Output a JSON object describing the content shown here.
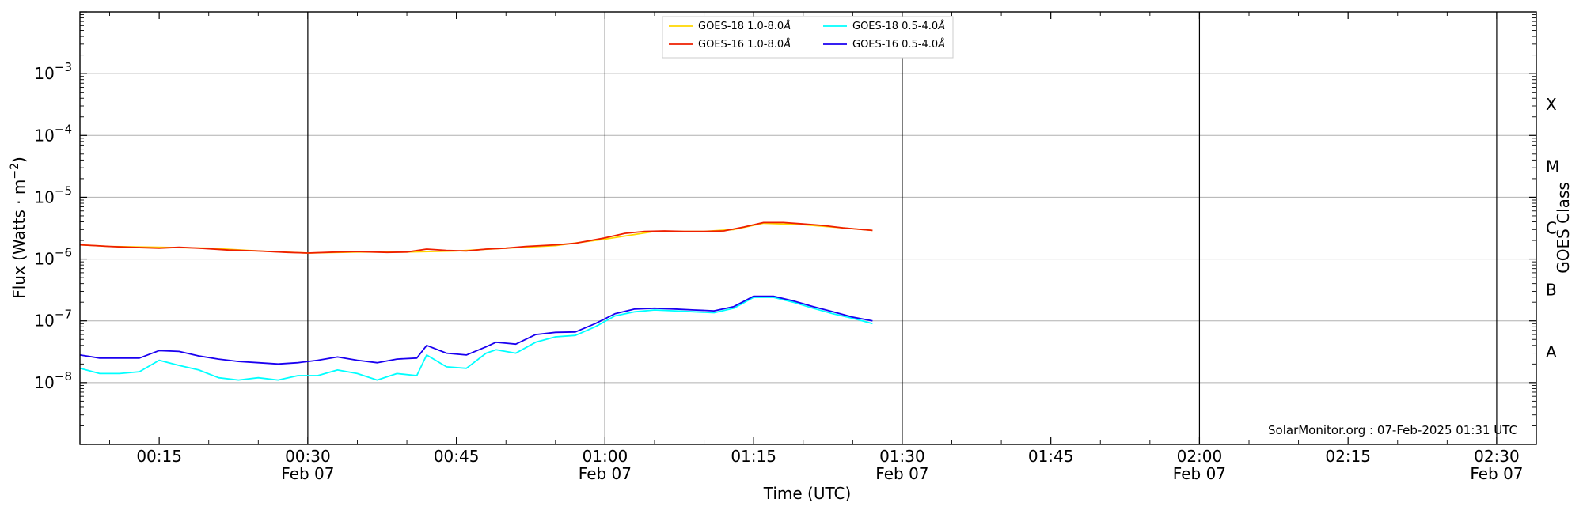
{
  "chart_data": {
    "type": "line",
    "xlabel": "Time (UTC)",
    "ylabel": "Flux (Watts · m",
    "ylabel_sup": "−2",
    "ylabel_close": ")",
    "y2label": "GOES Class",
    "yscale": "log",
    "ylim": [
      1e-09,
      0.01
    ],
    "xlim": [
      "2025-02-07T00:07",
      "2025-02-07T02:34"
    ],
    "grid": "horizontal",
    "legend_position": "top-center",
    "credit": "SolarMonitor.org : 07-Feb-2025 01:31 UTC",
    "x_ticks": [
      {
        "t": "00:15",
        "label": "00:15",
        "date": ""
      },
      {
        "t": "00:30",
        "label": "00:30",
        "date": "Feb 07"
      },
      {
        "t": "00:45",
        "label": "00:45",
        "date": ""
      },
      {
        "t": "01:00",
        "label": "01:00",
        "date": "Feb 07"
      },
      {
        "t": "01:15",
        "label": "01:15",
        "date": ""
      },
      {
        "t": "01:30",
        "label": "01:30",
        "date": "Feb 07"
      },
      {
        "t": "01:45",
        "label": "01:45",
        "date": ""
      },
      {
        "t": "02:00",
        "label": "02:00",
        "date": "Feb 07"
      },
      {
        "t": "02:15",
        "label": "02:15",
        "date": ""
      },
      {
        "t": "02:30",
        "label": "02:30",
        "date": "Feb 07"
      }
    ],
    "y_ticks": [
      {
        "exp": -8,
        "label": "10",
        "sup": "−8"
      },
      {
        "exp": -7,
        "label": "10",
        "sup": "−7"
      },
      {
        "exp": -6,
        "label": "10",
        "sup": "−6"
      },
      {
        "exp": -5,
        "label": "10",
        "sup": "−5"
      },
      {
        "exp": -4,
        "label": "10",
        "sup": "−4"
      },
      {
        "exp": -3,
        "label": "10",
        "sup": "−3"
      }
    ],
    "goes_classes": [
      {
        "label": "A",
        "exp": -7.5
      },
      {
        "label": "B",
        "exp": -6.5
      },
      {
        "label": "C",
        "exp": -5.5
      },
      {
        "label": "M",
        "exp": -4.5
      },
      {
        "label": "X",
        "exp": -3.5
      }
    ],
    "series": [
      {
        "name": "GOES-18 1.0-8.0",
        "unit": "Å",
        "color": "#ffd700",
        "x": [
          "00:07",
          "00:10",
          "00:15",
          "00:20",
          "00:25",
          "00:30",
          "00:35",
          "00:40",
          "00:45",
          "00:50",
          "00:55",
          "01:00",
          "01:05",
          "01:10",
          "01:13",
          "01:16",
          "01:20",
          "01:24",
          "01:27"
        ],
        "y": [
          1.7e-06,
          1.6e-06,
          1.55e-06,
          1.5e-06,
          1.35e-06,
          1.25e-06,
          1.3e-06,
          1.3e-06,
          1.35e-06,
          1.5e-06,
          1.65e-06,
          2.1e-06,
          2.8e-06,
          2.8e-06,
          3e-06,
          3.8e-06,
          3.6e-06,
          3.2e-06,
          2.9e-06
        ]
      },
      {
        "name": "GOES-16 1.0-8.0",
        "unit": "Å",
        "color": "#ee1f00",
        "x": [
          "00:07",
          "00:10",
          "00:12",
          "00:15",
          "00:17",
          "00:19",
          "00:22",
          "00:25",
          "00:28",
          "00:30",
          "00:33",
          "00:35",
          "00:38",
          "00:40",
          "00:42",
          "00:44",
          "00:46",
          "00:48",
          "00:50",
          "00:52",
          "00:55",
          "00:57",
          "01:00",
          "01:02",
          "01:04",
          "01:06",
          "01:08",
          "01:10",
          "01:12",
          "01:14",
          "01:16",
          "01:18",
          "01:20",
          "01:22",
          "01:24",
          "01:27"
        ],
        "y": [
          1.7e-06,
          1.6e-06,
          1.55e-06,
          1.5e-06,
          1.55e-06,
          1.5e-06,
          1.4e-06,
          1.35e-06,
          1.28e-06,
          1.25e-06,
          1.3e-06,
          1.32e-06,
          1.28e-06,
          1.3e-06,
          1.45e-06,
          1.38e-06,
          1.35e-06,
          1.45e-06,
          1.5e-06,
          1.6e-06,
          1.7e-06,
          1.8e-06,
          2.2e-06,
          2.6e-06,
          2.8e-06,
          2.85e-06,
          2.8e-06,
          2.8e-06,
          2.85e-06,
          3.3e-06,
          3.9e-06,
          3.9e-06,
          3.7e-06,
          3.5e-06,
          3.2e-06,
          2.9e-06
        ]
      },
      {
        "name": "GOES-18 0.5-4.0",
        "unit": "Å",
        "color": "#00ffff",
        "x": [
          "00:07",
          "00:09",
          "00:11",
          "00:13",
          "00:15",
          "00:17",
          "00:19",
          "00:21",
          "00:23",
          "00:25",
          "00:27",
          "00:29",
          "00:31",
          "00:33",
          "00:35",
          "00:37",
          "00:39",
          "00:41",
          "00:42",
          "00:44",
          "00:46",
          "00:48",
          "00:49",
          "00:51",
          "00:53",
          "00:55",
          "00:57",
          "00:59",
          "01:01",
          "01:03",
          "01:05",
          "01:07",
          "01:09",
          "01:11",
          "01:13",
          "01:15",
          "01:17",
          "01:19",
          "01:21",
          "01:23",
          "01:25",
          "01:27"
        ],
        "y": [
          1.7e-08,
          1.4e-08,
          1.4e-08,
          1.5e-08,
          2.3e-08,
          1.9e-08,
          1.6e-08,
          1.2e-08,
          1.1e-08,
          1.2e-08,
          1.1e-08,
          1.3e-08,
          1.3e-08,
          1.6e-08,
          1.4e-08,
          1.1e-08,
          1.4e-08,
          1.3e-08,
          2.8e-08,
          1.8e-08,
          1.7e-08,
          3e-08,
          3.4e-08,
          3e-08,
          4.5e-08,
          5.5e-08,
          5.8e-08,
          8e-08,
          1.2e-07,
          1.4e-07,
          1.5e-07,
          1.45e-07,
          1.4e-07,
          1.35e-07,
          1.6e-07,
          2.4e-07,
          2.4e-07,
          2e-07,
          1.6e-07,
          1.3e-07,
          1.1e-07,
          9e-08
        ]
      },
      {
        "name": "GOES-16 0.5-4.0",
        "unit": "Å",
        "color": "#1a00f0",
        "x": [
          "00:07",
          "00:09",
          "00:11",
          "00:13",
          "00:15",
          "00:17",
          "00:19",
          "00:21",
          "00:23",
          "00:25",
          "00:27",
          "00:29",
          "00:31",
          "00:33",
          "00:35",
          "00:37",
          "00:39",
          "00:41",
          "00:42",
          "00:44",
          "00:46",
          "00:48",
          "00:49",
          "00:51",
          "00:53",
          "00:55",
          "00:57",
          "00:59",
          "01:01",
          "01:03",
          "01:05",
          "01:07",
          "01:09",
          "01:11",
          "01:13",
          "01:15",
          "01:17",
          "01:19",
          "01:21",
          "01:23",
          "01:25",
          "01:27"
        ],
        "y": [
          2.8e-08,
          2.5e-08,
          2.5e-08,
          2.5e-08,
          3.3e-08,
          3.2e-08,
          2.7e-08,
          2.4e-08,
          2.2e-08,
          2.1e-08,
          2e-08,
          2.1e-08,
          2.3e-08,
          2.6e-08,
          2.3e-08,
          2.1e-08,
          2.4e-08,
          2.5e-08,
          4e-08,
          3e-08,
          2.8e-08,
          3.8e-08,
          4.5e-08,
          4.2e-08,
          6e-08,
          6.5e-08,
          6.6e-08,
          9e-08,
          1.3e-07,
          1.55e-07,
          1.6e-07,
          1.55e-07,
          1.5e-07,
          1.45e-07,
          1.7e-07,
          2.5e-07,
          2.5e-07,
          2.1e-07,
          1.7e-07,
          1.4e-07,
          1.15e-07,
          1e-07
        ]
      }
    ]
  }
}
